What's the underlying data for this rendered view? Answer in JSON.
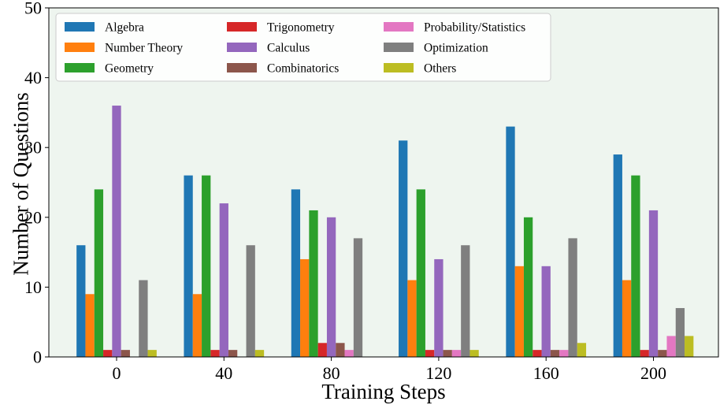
{
  "chart_data": {
    "type": "bar",
    "title": "",
    "xlabel": "Training Steps",
    "ylabel": "Number of Questions",
    "ylim": [
      0,
      50
    ],
    "yticks": [
      0,
      10,
      20,
      30,
      40,
      50
    ],
    "categories": [
      "0",
      "40",
      "80",
      "120",
      "160",
      "200"
    ],
    "grid": false,
    "legend_position": "top-left",
    "legend_columns": 3,
    "background": "#eef5ef",
    "series": [
      {
        "name": "Algebra",
        "color": "#1f77b4",
        "values": [
          16,
          26,
          24,
          31,
          33,
          29
        ]
      },
      {
        "name": "Number Theory",
        "color": "#ff7f0e",
        "values": [
          9,
          9,
          14,
          11,
          13,
          11
        ]
      },
      {
        "name": "Geometry",
        "color": "#2ca02c",
        "values": [
          24,
          26,
          21,
          24,
          20,
          26
        ]
      },
      {
        "name": "Trigonometry",
        "color": "#d62728",
        "values": [
          1,
          1,
          2,
          1,
          1,
          1
        ]
      },
      {
        "name": "Calculus",
        "color": "#9467bd",
        "values": [
          36,
          22,
          20,
          14,
          13,
          21
        ]
      },
      {
        "name": "Combinatorics",
        "color": "#8c564b",
        "values": [
          1,
          1,
          2,
          1,
          1,
          1
        ]
      },
      {
        "name": "Probability/Statistics",
        "color": "#e377c2",
        "values": [
          0,
          0,
          1,
          1,
          1,
          3
        ]
      },
      {
        "name": "Optimization",
        "color": "#7f7f7f",
        "values": [
          11,
          16,
          17,
          16,
          17,
          7
        ]
      },
      {
        "name": "Others",
        "color": "#bcbd22",
        "values": [
          1,
          1,
          0,
          1,
          2,
          3
        ]
      }
    ]
  }
}
